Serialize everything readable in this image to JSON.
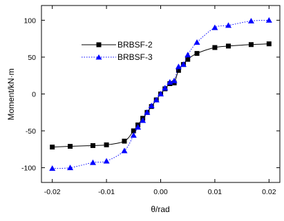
{
  "chart_data": {
    "type": "line",
    "xlabel": "θ/rad",
    "ylabel": "Moment/kN·m",
    "xlim": [
      -0.022,
      0.022
    ],
    "ylim": [
      -120,
      120
    ],
    "x_ticks": [
      "-0.02",
      "-0.01",
      "0.00",
      "0.01",
      "0.02"
    ],
    "x_tick_values": [
      -0.02,
      -0.01,
      0,
      0.01,
      0.02
    ],
    "y_ticks": [
      "100",
      "50",
      "0",
      "-50",
      "-100"
    ],
    "y_tick_values": [
      100,
      50,
      0,
      -50,
      -100
    ],
    "grid": false,
    "legend_position": "upper-left",
    "series": [
      {
        "name": "BRBSF-2",
        "marker": "square",
        "line_style": "solid",
        "color": "#000000",
        "x": [
          -0.02,
          -0.0167,
          -0.0125,
          -0.01,
          -0.0067,
          -0.005,
          -0.0042,
          -0.0033,
          -0.0025,
          -0.0017,
          -0.0008,
          0,
          0.0008,
          0.0017,
          0.0025,
          0.0033,
          0.0042,
          0.005,
          0.0067,
          0.01,
          0.0125,
          0.0167,
          0.02
        ],
        "y": [
          -72,
          -71,
          -70,
          -69,
          -64,
          -50,
          -42,
          -33,
          -25,
          -17,
          -8,
          0,
          7,
          14,
          15,
          32,
          40,
          47,
          55,
          63,
          65,
          67,
          68
        ]
      },
      {
        "name": "BRBSF-3",
        "marker": "triangle",
        "line_style": "dotted",
        "color": "#0000ff",
        "x": [
          -0.02,
          -0.0167,
          -0.0125,
          -0.01,
          -0.0067,
          -0.005,
          -0.0042,
          -0.0033,
          -0.0025,
          -0.0017,
          -0.0008,
          0,
          0.0008,
          0.0017,
          0.0025,
          0.0033,
          0.0042,
          0.005,
          0.0067,
          0.01,
          0.0125,
          0.0167,
          0.02
        ],
        "y": [
          -101,
          -100,
          -93,
          -91,
          -77,
          -56,
          -45,
          -36,
          -25,
          -16,
          -8,
          0,
          8,
          16,
          18,
          37,
          40,
          53,
          70,
          90,
          93,
          99,
          100
        ]
      }
    ]
  }
}
